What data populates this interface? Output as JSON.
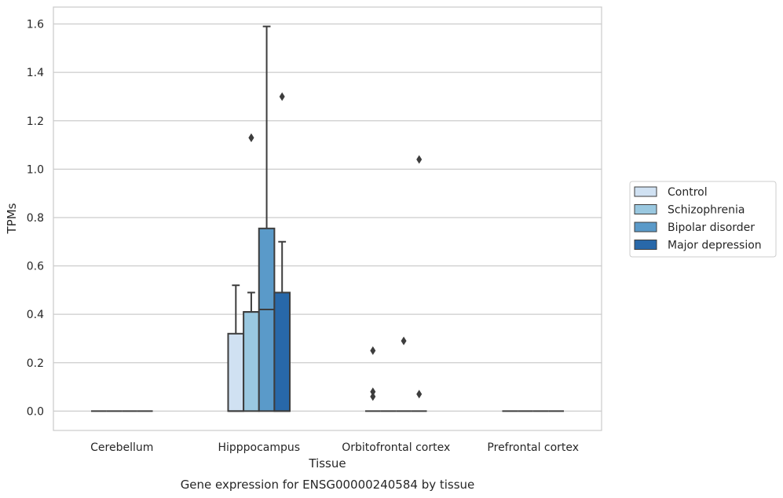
{
  "chart_data": {
    "type": "box",
    "caption": "Gene expression for ENSG00000240584 by tissue",
    "xlabel": "Tissue",
    "ylabel": "TPMs",
    "ylim": [
      -0.08,
      1.67
    ],
    "yticks": [
      0.0,
      0.2,
      0.4,
      0.6,
      0.8,
      1.0,
      1.2,
      1.4,
      1.6
    ],
    "ytick_labels": [
      "0.0",
      "0.2",
      "0.4",
      "0.6",
      "0.8",
      "1.0",
      "1.2",
      "1.4",
      "1.6"
    ],
    "grid": true,
    "legend_position": "right-outside",
    "categories": [
      "Cerebellum",
      "Hipppocampus",
      "Orbitofrontal cortex",
      "Prefrontal cortex"
    ],
    "series": [
      {
        "name": "Control",
        "color": "#d0e1f2",
        "boxes": [
          {
            "whisker_low": 0,
            "q1": 0,
            "median": 0,
            "q3": 0,
            "whisker_high": 0,
            "outliers": []
          },
          {
            "whisker_low": 0,
            "q1": 0,
            "median": 0,
            "q3": 0.32,
            "whisker_high": 0.52,
            "outliers": []
          },
          {
            "whisker_low": 0,
            "q1": 0,
            "median": 0,
            "q3": 0,
            "whisker_high": 0,
            "outliers": [
              0.25,
              0.08,
              0.06
            ]
          },
          {
            "whisker_low": 0,
            "q1": 0,
            "median": 0,
            "q3": 0,
            "whisker_high": 0,
            "outliers": []
          }
        ]
      },
      {
        "name": "Schizophrenia",
        "color": "#9ac8e0",
        "boxes": [
          {
            "whisker_low": 0,
            "q1": 0,
            "median": 0,
            "q3": 0,
            "whisker_high": 0,
            "outliers": []
          },
          {
            "whisker_low": 0,
            "q1": 0,
            "median": 0.41,
            "q3": 0.41,
            "whisker_high": 0.49,
            "outliers": [
              1.13,
              1.13
            ]
          },
          {
            "whisker_low": 0,
            "q1": 0,
            "median": 0,
            "q3": 0,
            "whisker_high": 0,
            "outliers": []
          },
          {
            "whisker_low": 0,
            "q1": 0,
            "median": 0,
            "q3": 0,
            "whisker_high": 0,
            "outliers": []
          }
        ]
      },
      {
        "name": "Bipolar disorder",
        "color": "#5a9ac9",
        "boxes": [
          {
            "whisker_low": 0,
            "q1": 0,
            "median": 0,
            "q3": 0,
            "whisker_high": 0,
            "outliers": []
          },
          {
            "whisker_low": 0,
            "q1": 0,
            "median": 0.42,
            "q3": 0.755,
            "whisker_high": 1.59,
            "outliers": []
          },
          {
            "whisker_low": 0,
            "q1": 0,
            "median": 0,
            "q3": 0,
            "whisker_high": 0,
            "outliers": [
              0.29
            ]
          },
          {
            "whisker_low": 0,
            "q1": 0,
            "median": 0,
            "q3": 0,
            "whisker_high": 0,
            "outliers": []
          }
        ]
      },
      {
        "name": "Major depression",
        "color": "#2868a9",
        "boxes": [
          {
            "whisker_low": 0,
            "q1": 0,
            "median": 0,
            "q3": 0,
            "whisker_high": 0,
            "outliers": []
          },
          {
            "whisker_low": 0,
            "q1": 0,
            "median": 0,
            "q3": 0.49,
            "whisker_high": 0.7,
            "outliers": [
              1.3
            ]
          },
          {
            "whisker_low": 0,
            "q1": 0,
            "median": 0,
            "q3": 0,
            "whisker_high": 0,
            "outliers": [
              1.04,
              0.07
            ]
          },
          {
            "whisker_low": 0,
            "q1": 0,
            "median": 0,
            "q3": 0,
            "whisker_high": 0,
            "outliers": []
          }
        ]
      }
    ]
  }
}
